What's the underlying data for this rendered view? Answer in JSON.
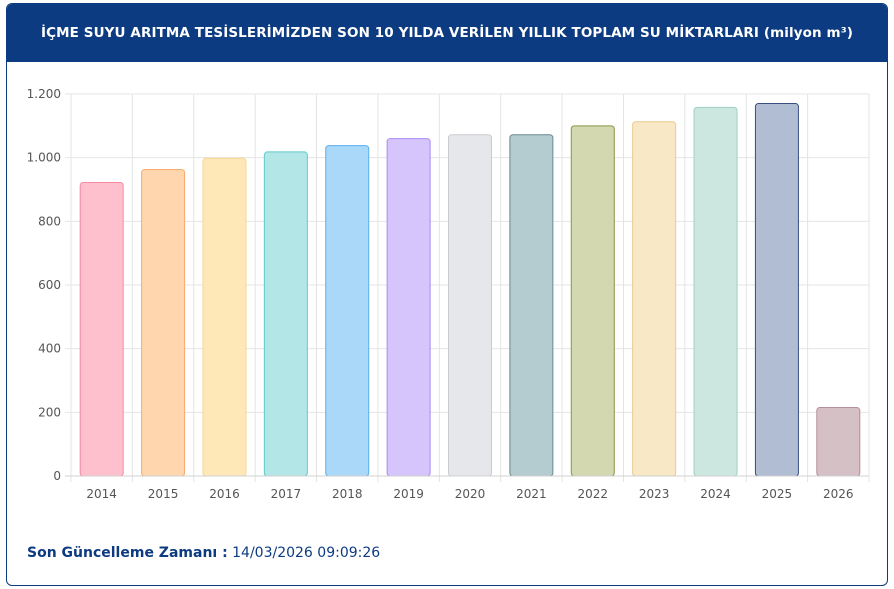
{
  "header": {
    "title": "İÇME SUYU ARITMA TESİSLERİMİZDEN SON 10 YILDA VERİLEN YILLIK TOPLAM SU MİKTARLARI (milyon m³)"
  },
  "footer": {
    "label": "Son Güncelleme Zamanı :",
    "value": "14/03/2026 09:09:26"
  },
  "chart_data": {
    "type": "bar",
    "title": "İÇME SUYU ARITMA TESİSLERİMİZDEN SON 10 YILDA VERİLEN YILLIK TOPLAM SU MİKTARLARI (milyon m³)",
    "xlabel": "",
    "ylabel": "",
    "categories": [
      "2014",
      "2015",
      "2016",
      "2017",
      "2018",
      "2019",
      "2020",
      "2021",
      "2022",
      "2023",
      "2024",
      "2025",
      "2026"
    ],
    "values": [
      922,
      963,
      998,
      1018,
      1038,
      1060,
      1072,
      1072,
      1100,
      1113,
      1158,
      1170,
      215
    ],
    "ylim": [
      0,
      1200
    ],
    "yticks": [
      0,
      200,
      400,
      600,
      800,
      1000,
      1200
    ],
    "ytick_labels": [
      "0",
      "200",
      "400",
      "600",
      "800",
      "1.000",
      "1.200"
    ],
    "grid": true,
    "colors": {
      "fills": [
        "#ffc0cd",
        "#ffd6ae",
        "#ffe8b7",
        "#b3e6e6",
        "#aad8f8",
        "#d6c5fd",
        "#e6e7ea",
        "#b4cbcf",
        "#d4d8b1",
        "#f8e8c6",
        "#cce6e0",
        "#b1bdd3",
        "#d5c0c6"
      ],
      "strokes": [
        "#f58aa3",
        "#f7ab6e",
        "#f8d68f",
        "#62c9c9",
        "#5aaef0",
        "#a98bf4",
        "#c9cbcf",
        "#688a90",
        "#8a9347",
        "#ecc98d",
        "#9cd1c3",
        "#3a4d80",
        "#b58f99"
      ]
    }
  }
}
